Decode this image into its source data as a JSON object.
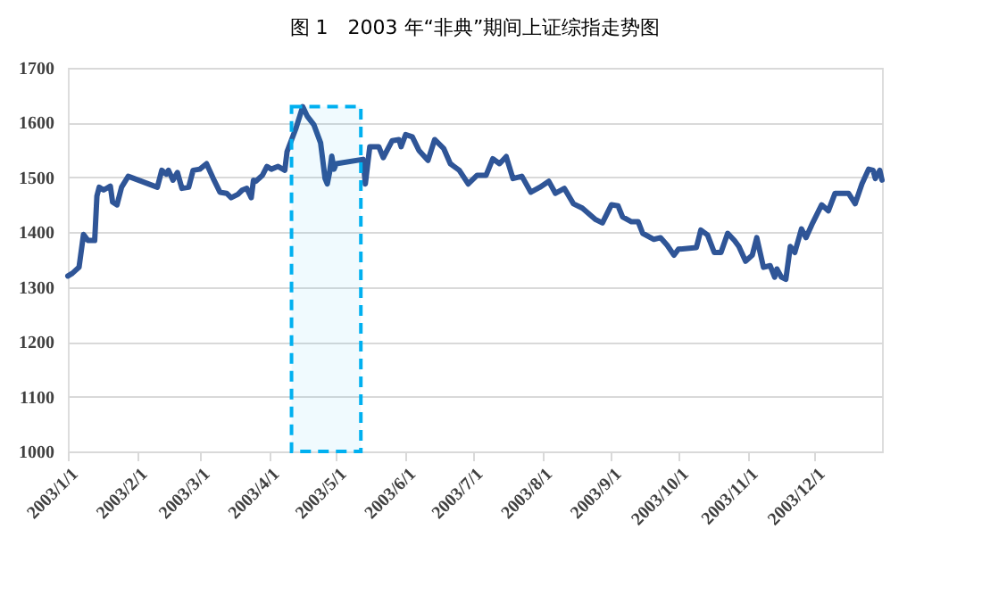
{
  "chart_data": {
    "type": "line",
    "title": "图 1　2003 年“非典”期间上证综指走势图",
    "x": [
      "2003-01-01",
      "2003-01-03",
      "2003-01-06",
      "2003-01-08",
      "2003-01-10",
      "2003-01-13",
      "2003-01-14",
      "2003-01-15",
      "2003-01-17",
      "2003-01-20",
      "2003-01-21",
      "2003-01-23",
      "2003-01-25",
      "2003-01-28",
      "2003-02-10",
      "2003-02-12",
      "2003-02-14",
      "2003-02-15",
      "2003-02-17",
      "2003-02-19",
      "2003-02-21",
      "2003-02-24",
      "2003-02-26",
      "2003-03-01",
      "2003-03-04",
      "2003-03-07",
      "2003-03-10",
      "2003-03-13",
      "2003-03-15",
      "2003-03-18",
      "2003-03-20",
      "2003-03-22",
      "2003-03-24",
      "2003-03-25",
      "2003-03-26",
      "2003-03-29",
      "2003-03-31",
      "2003-04-02",
      "2003-04-05",
      "2003-04-08",
      "2003-04-09",
      "2003-04-13",
      "2003-04-16",
      "2003-04-18",
      "2003-04-21",
      "2003-04-23",
      "2003-04-24",
      "2003-04-26",
      "2003-04-27",
      "2003-04-28",
      "2003-04-29",
      "2003-04-30",
      "2003-05-01",
      "2003-05-13",
      "2003-05-14",
      "2003-05-16",
      "2003-05-20",
      "2003-05-22",
      "2003-05-26",
      "2003-05-29",
      "2003-05-30",
      "2003-06-01",
      "2003-06-04",
      "2003-06-07",
      "2003-06-11",
      "2003-06-14",
      "2003-06-18",
      "2003-06-21",
      "2003-06-25",
      "2003-06-29",
      "2003-07-03",
      "2003-07-07",
      "2003-07-10",
      "2003-07-13",
      "2003-07-16",
      "2003-07-19",
      "2003-07-23",
      "2003-07-27",
      "2003-07-31",
      "2003-08-04",
      "2003-08-07",
      "2003-08-11",
      "2003-08-15",
      "2003-08-19",
      "2003-08-25",
      "2003-08-28",
      "2003-09-01",
      "2003-09-04",
      "2003-09-06",
      "2003-09-10",
      "2003-09-13",
      "2003-09-15",
      "2003-09-20",
      "2003-09-23",
      "2003-09-26",
      "2003-09-29",
      "2003-10-01",
      "2003-10-09",
      "2003-10-11",
      "2003-10-14",
      "2003-10-17",
      "2003-10-20",
      "2003-10-23",
      "2003-10-26",
      "2003-10-28",
      "2003-10-31",
      "2003-11-03",
      "2003-11-05",
      "2003-11-08",
      "2003-11-11",
      "2003-11-13",
      "2003-11-14",
      "2003-11-16",
      "2003-11-18",
      "2003-11-20",
      "2003-11-22",
      "2003-11-25",
      "2003-11-27",
      "2003-11-30",
      "2003-12-04",
      "2003-12-07",
      "2003-12-10",
      "2003-12-16",
      "2003-12-19",
      "2003-12-22",
      "2003-12-25",
      "2003-12-27",
      "2003-12-28",
      "2003-12-30",
      "2003-12-31"
    ],
    "series": [
      {
        "color": "#2f5597",
        "values": [
          1320,
          1325,
          1336,
          1396,
          1385,
          1385,
          1466,
          1482,
          1477,
          1484,
          1455,
          1450,
          1482,
          1502,
          1482,
          1513,
          1506,
          1513,
          1495,
          1509,
          1480,
          1482,
          1513,
          1515,
          1525,
          1498,
          1473,
          1471,
          1463,
          1469,
          1477,
          1480,
          1463,
          1495,
          1493,
          1504,
          1520,
          1515,
          1520,
          1513,
          1547,
          1590,
          1629,
          1612,
          1596,
          1574,
          1563,
          1498,
          1488,
          1509,
          1539,
          1515,
          1525,
          1533,
          1488,
          1556,
          1556,
          1536,
          1567,
          1569,
          1556,
          1578,
          1574,
          1549,
          1531,
          1569,
          1553,
          1525,
          1513,
          1488,
          1504,
          1504,
          1534,
          1525,
          1538,
          1498,
          1502,
          1473,
          1482,
          1493,
          1471,
          1480,
          1452,
          1444,
          1423,
          1417,
          1450,
          1448,
          1428,
          1419,
          1419,
          1398,
          1387,
          1390,
          1376,
          1358,
          1369,
          1372,
          1404,
          1395,
          1363,
          1363,
          1398,
          1385,
          1374,
          1347,
          1358,
          1390,
          1336,
          1339,
          1318,
          1333,
          1318,
          1314,
          1374,
          1363,
          1406,
          1390,
          1417,
          1450,
          1439,
          1471,
          1471,
          1452,
          1488,
          1515,
          1513,
          1498,
          1513,
          1495
        ]
      }
    ],
    "xlim": [
      "2003-01-01",
      "2003-12-31"
    ],
    "xticks": [
      {
        "value": "2003-01-01",
        "label": "2003/1/1"
      },
      {
        "value": "2003-02-01",
        "label": "2003/2/1"
      },
      {
        "value": "2003-03-01",
        "label": "2003/3/1"
      },
      {
        "value": "2003-04-01",
        "label": "2003/4/1"
      },
      {
        "value": "2003-05-01",
        "label": "2003/5/1"
      },
      {
        "value": "2003-06-01",
        "label": "2003/6/1"
      },
      {
        "value": "2003-07-01",
        "label": "2003/7/1"
      },
      {
        "value": "2003-08-01",
        "label": "2003/8/1"
      },
      {
        "value": "2003-09-01",
        "label": "2003/9/1"
      },
      {
        "value": "2003-10-01",
        "label": "2003/10/1"
      },
      {
        "value": "2003-11-01",
        "label": "2003/11/1"
      },
      {
        "value": "2003-12-01",
        "label": "2003/12/1"
      }
    ],
    "ylim": [
      1000,
      1700
    ],
    "yticks": [
      1000,
      1100,
      1200,
      1300,
      1400,
      1500,
      1600,
      1700
    ],
    "bands": [
      {
        "axis": "x",
        "from": "2003-04-11",
        "to": "2003-05-12",
        "color": "#00b0f0"
      }
    ],
    "grid": "y",
    "marker": "none",
    "line_style": "solid"
  }
}
